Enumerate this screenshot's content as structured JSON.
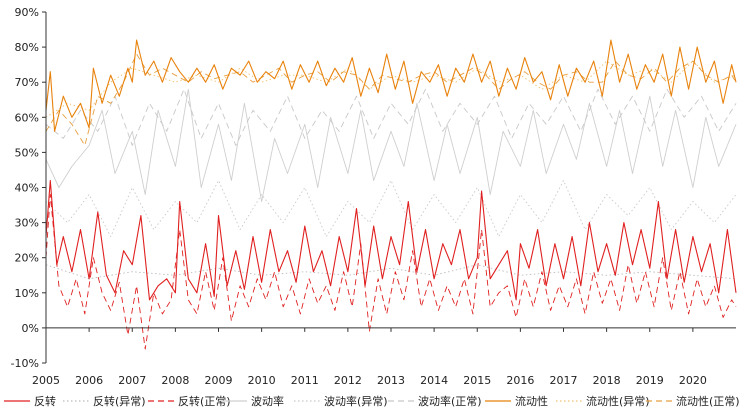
{
  "chart_data": {
    "type": "line",
    "title": "",
    "xlabel": "",
    "ylabel": "",
    "ylim": [
      -0.1,
      0.9
    ],
    "xlim": [
      2005,
      2021
    ],
    "y_ticks": [
      -0.1,
      0.0,
      0.1,
      0.2,
      0.3,
      0.4,
      0.5,
      0.6,
      0.7,
      0.8,
      0.9
    ],
    "y_tick_labels": [
      "-10%",
      "0%",
      "10%",
      "20%",
      "30%",
      "40%",
      "50%",
      "60%",
      "70%",
      "80%",
      "90%"
    ],
    "x_ticks": [
      2005,
      2006,
      2007,
      2008,
      2009,
      2010,
      2011,
      2012,
      2013,
      2014,
      2015,
      2016,
      2017,
      2018,
      2019,
      2020
    ],
    "x_tick_labels": [
      "2005",
      "2006",
      "2007",
      "2008",
      "2009",
      "2010",
      "2011",
      "2012",
      "2013",
      "2014",
      "2015",
      "2016",
      "2017",
      "2018",
      "2019",
      "2020"
    ],
    "legend_position": "bottom",
    "grid": false,
    "series": [
      {
        "name": "反转",
        "color": "#e02020",
        "dash": "solid",
        "x": [
          2005.0,
          2005.1,
          2005.25,
          2005.4,
          2005.6,
          2005.8,
          2006.0,
          2006.2,
          2006.4,
          2006.6,
          2006.8,
          2007.0,
          2007.2,
          2007.4,
          2007.6,
          2007.8,
          2008.0,
          2008.1,
          2008.3,
          2008.5,
          2008.7,
          2008.9,
          2009.0,
          2009.2,
          2009.4,
          2009.6,
          2009.8,
          2010.0,
          2010.2,
          2010.4,
          2010.6,
          2010.8,
          2011.0,
          2011.2,
          2011.4,
          2011.6,
          2011.8,
          2012.0,
          2012.2,
          2012.4,
          2012.6,
          2012.8,
          2013.0,
          2013.2,
          2013.4,
          2013.6,
          2013.8,
          2014.0,
          2014.2,
          2014.4,
          2014.6,
          2014.8,
          2015.0,
          2015.1,
          2015.3,
          2015.5,
          2015.7,
          2015.9,
          2016.0,
          2016.2,
          2016.4,
          2016.6,
          2016.8,
          2017.0,
          2017.2,
          2017.4,
          2017.6,
          2017.8,
          2018.0,
          2018.2,
          2018.4,
          2018.6,
          2018.8,
          2019.0,
          2019.2,
          2019.4,
          2019.6,
          2019.8,
          2020.0,
          2020.2,
          2020.4,
          2020.6,
          2020.8,
          2021.0
        ],
        "values": [
          0.26,
          0.42,
          0.18,
          0.26,
          0.16,
          0.28,
          0.14,
          0.33,
          0.15,
          0.1,
          0.22,
          0.18,
          0.32,
          0.08,
          0.12,
          0.14,
          0.1,
          0.36,
          0.14,
          0.1,
          0.24,
          0.09,
          0.32,
          0.12,
          0.22,
          0.11,
          0.26,
          0.13,
          0.28,
          0.16,
          0.22,
          0.13,
          0.29,
          0.16,
          0.22,
          0.12,
          0.26,
          0.16,
          0.34,
          0.12,
          0.29,
          0.14,
          0.26,
          0.18,
          0.36,
          0.16,
          0.28,
          0.14,
          0.24,
          0.18,
          0.28,
          0.14,
          0.2,
          0.39,
          0.14,
          0.18,
          0.22,
          0.08,
          0.24,
          0.17,
          0.28,
          0.12,
          0.24,
          0.14,
          0.26,
          0.12,
          0.3,
          0.16,
          0.24,
          0.15,
          0.3,
          0.18,
          0.28,
          0.17,
          0.36,
          0.14,
          0.28,
          0.13,
          0.26,
          0.16,
          0.24,
          0.1,
          0.28,
          0.1
        ]
      },
      {
        "name": "反转(异常)",
        "color": "#bbbbbb",
        "dash": "dot",
        "x": [
          2005.0,
          2006.0,
          2007.0,
          2008.0,
          2009.0,
          2010.0,
          2011.0,
          2012.0,
          2013.0,
          2014.0,
          2015.0,
          2016.0,
          2017.0,
          2018.0,
          2019.0,
          2020.0,
          2021.0
        ],
        "values": [
          0.18,
          0.14,
          0.16,
          0.15,
          0.17,
          0.15,
          0.16,
          0.15,
          0.17,
          0.15,
          0.18,
          0.15,
          0.16,
          0.15,
          0.16,
          0.15,
          0.14
        ]
      },
      {
        "name": "反转(正常)",
        "color": "#e02020",
        "dash": "dash",
        "x": [
          2005.0,
          2005.1,
          2005.3,
          2005.5,
          2005.7,
          2005.9,
          2006.1,
          2006.3,
          2006.5,
          2006.7,
          2006.9,
          2007.1,
          2007.3,
          2007.5,
          2007.7,
          2007.9,
          2008.1,
          2008.3,
          2008.5,
          2008.7,
          2008.9,
          2009.1,
          2009.3,
          2009.5,
          2009.7,
          2009.9,
          2010.1,
          2010.3,
          2010.5,
          2010.7,
          2010.9,
          2011.1,
          2011.3,
          2011.5,
          2011.7,
          2011.9,
          2012.1,
          2012.3,
          2012.5,
          2012.7,
          2012.9,
          2013.1,
          2013.3,
          2013.5,
          2013.7,
          2013.9,
          2014.1,
          2014.3,
          2014.5,
          2014.7,
          2014.9,
          2015.1,
          2015.3,
          2015.5,
          2015.7,
          2015.9,
          2016.1,
          2016.3,
          2016.5,
          2016.7,
          2016.9,
          2017.1,
          2017.3,
          2017.5,
          2017.7,
          2017.9,
          2018.1,
          2018.3,
          2018.5,
          2018.7,
          2018.9,
          2019.1,
          2019.3,
          2019.5,
          2019.7,
          2019.9,
          2020.1,
          2020.3,
          2020.5,
          2020.7,
          2020.9,
          2021.0
        ],
        "values": [
          0.2,
          0.38,
          0.12,
          0.06,
          0.14,
          0.04,
          0.2,
          0.1,
          0.05,
          0.13,
          -0.02,
          0.12,
          -0.06,
          0.1,
          0.04,
          0.08,
          0.28,
          0.08,
          0.04,
          0.16,
          0.05,
          0.2,
          0.02,
          0.12,
          0.06,
          0.14,
          0.08,
          0.16,
          0.06,
          0.12,
          0.04,
          0.14,
          0.07,
          0.12,
          0.05,
          0.16,
          0.06,
          0.24,
          -0.01,
          0.14,
          0.04,
          0.16,
          0.08,
          0.22,
          0.06,
          0.14,
          0.05,
          0.12,
          0.06,
          0.14,
          0.04,
          0.28,
          0.06,
          0.1,
          0.12,
          0.03,
          0.14,
          0.06,
          0.16,
          0.05,
          0.12,
          0.06,
          0.14,
          0.04,
          0.16,
          0.07,
          0.14,
          0.05,
          0.18,
          0.07,
          0.16,
          0.06,
          0.2,
          0.05,
          0.16,
          0.04,
          0.14,
          0.06,
          0.12,
          0.03,
          0.08,
          0.06
        ]
      },
      {
        "name": "波动率",
        "color": "#cfcfcf",
        "dash": "solid",
        "x": [
          2005.0,
          2005.3,
          2005.6,
          2006.0,
          2006.3,
          2006.6,
          2007.0,
          2007.3,
          2007.6,
          2008.0,
          2008.3,
          2008.6,
          2009.0,
          2009.3,
          2009.6,
          2010.0,
          2010.3,
          2010.6,
          2011.0,
          2011.3,
          2011.6,
          2012.0,
          2012.3,
          2012.6,
          2013.0,
          2013.3,
          2013.6,
          2014.0,
          2014.3,
          2014.6,
          2015.0,
          2015.3,
          2015.6,
          2016.0,
          2016.3,
          2016.6,
          2017.0,
          2017.3,
          2017.6,
          2018.0,
          2018.3,
          2018.6,
          2019.0,
          2019.3,
          2019.6,
          2020.0,
          2020.3,
          2020.6,
          2021.0
        ],
        "values": [
          0.48,
          0.4,
          0.46,
          0.52,
          0.62,
          0.44,
          0.56,
          0.38,
          0.62,
          0.46,
          0.68,
          0.4,
          0.58,
          0.42,
          0.64,
          0.36,
          0.54,
          0.44,
          0.58,
          0.4,
          0.6,
          0.44,
          0.62,
          0.42,
          0.56,
          0.46,
          0.64,
          0.42,
          0.58,
          0.44,
          0.6,
          0.38,
          0.56,
          0.46,
          0.62,
          0.44,
          0.58,
          0.48,
          0.64,
          0.46,
          0.62,
          0.44,
          0.66,
          0.46,
          0.62,
          0.4,
          0.6,
          0.46,
          0.58
        ]
      },
      {
        "name": "波动率(异常)",
        "color": "#c8c8c8",
        "dash": "dot",
        "x": [
          2005.0,
          2005.5,
          2006.0,
          2006.5,
          2007.0,
          2007.5,
          2008.0,
          2008.5,
          2009.0,
          2009.5,
          2010.0,
          2010.5,
          2011.0,
          2011.5,
          2012.0,
          2012.5,
          2013.0,
          2013.5,
          2014.0,
          2014.5,
          2015.0,
          2015.5,
          2016.0,
          2016.5,
          2017.0,
          2017.5,
          2018.0,
          2018.5,
          2019.0,
          2019.5,
          2020.0,
          2020.5,
          2021.0
        ],
        "values": [
          0.36,
          0.3,
          0.38,
          0.26,
          0.4,
          0.28,
          0.36,
          0.3,
          0.42,
          0.28,
          0.38,
          0.3,
          0.4,
          0.26,
          0.36,
          0.3,
          0.42,
          0.28,
          0.38,
          0.3,
          0.4,
          0.26,
          0.38,
          0.3,
          0.42,
          0.28,
          0.38,
          0.32,
          0.4,
          0.28,
          0.36,
          0.3,
          0.38
        ]
      },
      {
        "name": "波动率(正常)",
        "color": "#c8c8c8",
        "dash": "dash",
        "x": [
          2005.0,
          2005.4,
          2005.8,
          2006.2,
          2006.6,
          2007.0,
          2007.4,
          2007.8,
          2008.2,
          2008.6,
          2009.0,
          2009.4,
          2009.8,
          2010.2,
          2010.6,
          2011.0,
          2011.4,
          2011.8,
          2012.2,
          2012.6,
          2013.0,
          2013.4,
          2013.8,
          2014.2,
          2014.6,
          2015.0,
          2015.4,
          2015.8,
          2016.2,
          2016.6,
          2017.0,
          2017.4,
          2017.8,
          2018.2,
          2018.6,
          2019.0,
          2019.4,
          2019.8,
          2020.2,
          2020.6,
          2021.0
        ],
        "values": [
          0.58,
          0.54,
          0.62,
          0.56,
          0.66,
          0.52,
          0.64,
          0.56,
          0.68,
          0.54,
          0.64,
          0.52,
          0.62,
          0.56,
          0.66,
          0.54,
          0.62,
          0.56,
          0.66,
          0.54,
          0.64,
          0.58,
          0.68,
          0.56,
          0.64,
          0.58,
          0.66,
          0.54,
          0.64,
          0.58,
          0.66,
          0.56,
          0.68,
          0.58,
          0.66,
          0.56,
          0.68,
          0.6,
          0.66,
          0.56,
          0.64
        ]
      },
      {
        "name": "流动性",
        "color": "#e8820c",
        "dash": "solid",
        "x": [
          2005.0,
          2005.1,
          2005.2,
          2005.4,
          2005.6,
          2005.8,
          2006.0,
          2006.1,
          2006.3,
          2006.5,
          2006.7,
          2006.9,
          2007.0,
          2007.1,
          2007.3,
          2007.5,
          2007.7,
          2007.9,
          2008.1,
          2008.3,
          2008.5,
          2008.7,
          2008.9,
          2009.1,
          2009.3,
          2009.5,
          2009.7,
          2009.9,
          2010.1,
          2010.3,
          2010.5,
          2010.7,
          2010.9,
          2011.1,
          2011.3,
          2011.5,
          2011.7,
          2011.9,
          2012.1,
          2012.3,
          2012.5,
          2012.7,
          2012.9,
          2013.1,
          2013.3,
          2013.5,
          2013.7,
          2013.9,
          2014.1,
          2014.3,
          2014.5,
          2014.7,
          2014.9,
          2015.1,
          2015.3,
          2015.5,
          2015.7,
          2015.9,
          2016.1,
          2016.3,
          2016.5,
          2016.7,
          2016.9,
          2017.1,
          2017.3,
          2017.5,
          2017.7,
          2017.9,
          2018.1,
          2018.3,
          2018.5,
          2018.7,
          2018.9,
          2019.1,
          2019.3,
          2019.5,
          2019.7,
          2019.9,
          2020.1,
          2020.3,
          2020.5,
          2020.7,
          2020.9,
          2021.0
        ],
        "values": [
          0.62,
          0.73,
          0.56,
          0.66,
          0.6,
          0.64,
          0.57,
          0.74,
          0.64,
          0.72,
          0.66,
          0.74,
          0.7,
          0.82,
          0.72,
          0.76,
          0.7,
          0.77,
          0.73,
          0.7,
          0.74,
          0.7,
          0.75,
          0.68,
          0.74,
          0.72,
          0.76,
          0.7,
          0.73,
          0.71,
          0.76,
          0.68,
          0.75,
          0.7,
          0.76,
          0.69,
          0.74,
          0.7,
          0.77,
          0.66,
          0.74,
          0.67,
          0.78,
          0.68,
          0.76,
          0.64,
          0.73,
          0.7,
          0.75,
          0.66,
          0.74,
          0.7,
          0.78,
          0.7,
          0.76,
          0.66,
          0.74,
          0.68,
          0.77,
          0.7,
          0.73,
          0.65,
          0.75,
          0.66,
          0.74,
          0.7,
          0.76,
          0.66,
          0.82,
          0.7,
          0.78,
          0.68,
          0.75,
          0.7,
          0.78,
          0.66,
          0.8,
          0.68,
          0.8,
          0.7,
          0.76,
          0.64,
          0.75,
          0.7
        ]
      },
      {
        "name": "流动性(异常)",
        "color": "#f0c070",
        "dash": "dot",
        "x": [
          2005.0,
          2005.5,
          2006.0,
          2006.5,
          2007.0,
          2007.5,
          2008.0,
          2008.5,
          2009.0,
          2009.5,
          2010.0,
          2010.5,
          2011.0,
          2011.5,
          2012.0,
          2012.5,
          2013.0,
          2013.5,
          2014.0,
          2014.5,
          2015.0,
          2015.5,
          2016.0,
          2016.5,
          2017.0,
          2017.5,
          2018.0,
          2018.5,
          2019.0,
          2019.5,
          2020.0,
          2020.5,
          2021.0
        ],
        "values": [
          0.6,
          0.64,
          0.62,
          0.7,
          0.74,
          0.72,
          0.7,
          0.72,
          0.7,
          0.74,
          0.7,
          0.72,
          0.72,
          0.7,
          0.74,
          0.68,
          0.72,
          0.7,
          0.72,
          0.7,
          0.74,
          0.7,
          0.72,
          0.68,
          0.72,
          0.7,
          0.76,
          0.72,
          0.74,
          0.7,
          0.76,
          0.7,
          0.72
        ]
      },
      {
        "name": "流动性(正常)",
        "color": "#e8a040",
        "dash": "dash",
        "x": [
          2005.0,
          2005.3,
          2005.6,
          2005.9,
          2006.2,
          2006.5,
          2006.8,
          2007.1,
          2007.4,
          2007.7,
          2008.0,
          2008.3,
          2008.6,
          2008.9,
          2009.2,
          2009.5,
          2009.8,
          2010.1,
          2010.4,
          2010.7,
          2011.0,
          2011.3,
          2011.6,
          2011.9,
          2012.2,
          2012.5,
          2012.8,
          2013.1,
          2013.4,
          2013.7,
          2014.0,
          2014.3,
          2014.6,
          2014.9,
          2015.2,
          2015.5,
          2015.8,
          2016.1,
          2016.4,
          2016.7,
          2017.0,
          2017.3,
          2017.6,
          2017.9,
          2018.2,
          2018.5,
          2018.8,
          2019.1,
          2019.4,
          2019.7,
          2020.0,
          2020.3,
          2020.6,
          2020.9,
          2021.0
        ],
        "values": [
          0.56,
          0.62,
          0.58,
          0.52,
          0.66,
          0.64,
          0.7,
          0.78,
          0.72,
          0.74,
          0.72,
          0.7,
          0.73,
          0.71,
          0.72,
          0.73,
          0.7,
          0.72,
          0.74,
          0.7,
          0.72,
          0.73,
          0.7,
          0.73,
          0.72,
          0.68,
          0.72,
          0.71,
          0.7,
          0.72,
          0.73,
          0.7,
          0.72,
          0.74,
          0.72,
          0.68,
          0.71,
          0.73,
          0.7,
          0.68,
          0.72,
          0.73,
          0.7,
          0.7,
          0.76,
          0.72,
          0.71,
          0.74,
          0.7,
          0.74,
          0.76,
          0.72,
          0.7,
          0.72,
          0.7
        ]
      }
    ]
  }
}
